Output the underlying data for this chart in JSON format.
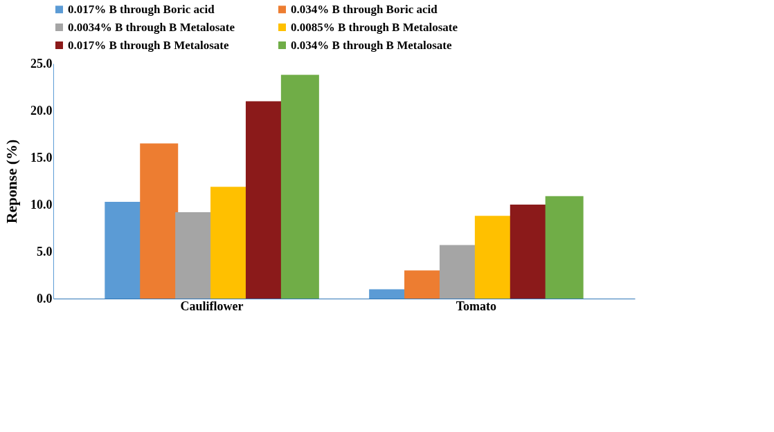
{
  "chart_data": {
    "type": "bar",
    "ylabel": "Reponse (%)",
    "categories": [
      "Cauliflower",
      "Tomato"
    ],
    "series": [
      {
        "name": "0.017% B through Boric acid",
        "color": "#5b9bd5",
        "values": [
          10.3,
          1.0
        ]
      },
      {
        "name": "0.034% B through Boric acid",
        "color": "#ed7d31",
        "values": [
          16.5,
          3.0
        ]
      },
      {
        "name": "0.0034% B through B Metalosate",
        "color": "#a5a5a5",
        "values": [
          9.2,
          5.7
        ]
      },
      {
        "name": "0.0085% B through B Metalosate",
        "color": "#ffc000",
        "values": [
          11.9,
          8.8
        ]
      },
      {
        "name": "0.017% B through B Metalosate",
        "color": "#8b1a1a",
        "values": [
          21.0,
          10.0
        ]
      },
      {
        "name": "0.034% B through B Metalosate",
        "color": "#70ad47",
        "values": [
          23.8,
          10.9
        ]
      }
    ],
    "ylim": [
      0,
      25
    ],
    "yticks": [
      {
        "value": 0,
        "label": "0.0"
      },
      {
        "value": 5,
        "label": "5.0"
      },
      {
        "value": 10,
        "label": "10.0"
      },
      {
        "value": 15,
        "label": "15.0"
      },
      {
        "value": 20,
        "label": "20.0"
      },
      {
        "value": 25,
        "label": "25.0"
      }
    ],
    "grid": false,
    "legend": "top"
  }
}
